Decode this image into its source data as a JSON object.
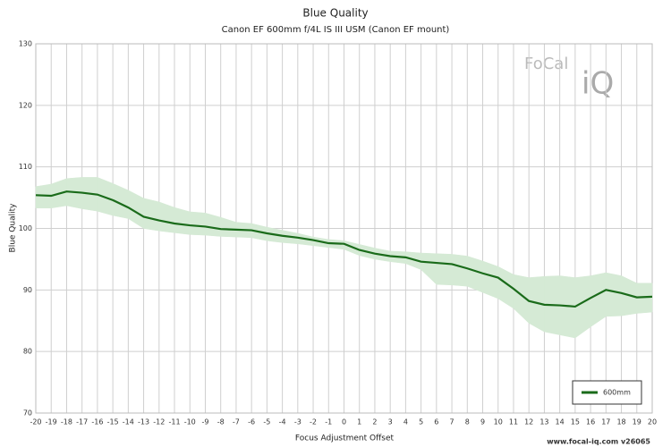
{
  "chart_data": {
    "type": "line",
    "title": "Blue Quality",
    "subtitle": "Canon EF 600mm f/4L IS III USM (Canon EF mount)",
    "x_label": "Focus Adjustment Offset",
    "y_label": "Blue Quality",
    "logo": [
      "FoCal",
      "iQ"
    ],
    "watermark": "www.focal-iq.com  v26065",
    "x": [
      -20,
      -19,
      -18,
      -17,
      -16,
      -15,
      -14,
      -13,
      -12,
      -11,
      -10,
      -9,
      -8,
      -7,
      -6,
      -5,
      -4,
      -3,
      -2,
      -1,
      0,
      1,
      2,
      3,
      4,
      5,
      6,
      7,
      8,
      9,
      10,
      11,
      12,
      13,
      14,
      15,
      16,
      17,
      18,
      19,
      20
    ],
    "xlim": [
      -20,
      20
    ],
    "xticks": [
      -20,
      -19,
      -18,
      -17,
      -16,
      -15,
      -14,
      -13,
      -12,
      -11,
      -10,
      -9,
      -8,
      -7,
      -6,
      -5,
      -4,
      -3,
      -2,
      -1,
      0,
      1,
      2,
      3,
      4,
      5,
      6,
      7,
      8,
      9,
      10,
      11,
      12,
      13,
      14,
      15,
      16,
      17,
      18,
      19,
      20
    ],
    "ylim": [
      70,
      130
    ],
    "yticks": [
      70,
      80,
      90,
      100,
      110,
      120,
      130
    ],
    "grid": true,
    "legend": "lower-right",
    "series": [
      {
        "name": "600mm",
        "color": "#1a6b1a",
        "band_color": "#d5ead5",
        "values": [
          105.4,
          105.3,
          106.0,
          105.8,
          105.5,
          104.6,
          103.4,
          101.9,
          101.3,
          100.8,
          100.5,
          100.3,
          99.9,
          99.8,
          99.7,
          99.2,
          98.8,
          98.5,
          98.1,
          97.6,
          97.5,
          96.5,
          95.9,
          95.5,
          95.3,
          94.6,
          94.4,
          94.2,
          93.5,
          92.7,
          92.0,
          90.2,
          88.2,
          87.6,
          87.5,
          87.3,
          88.7,
          90.0,
          89.5,
          88.8,
          88.9
        ],
        "band_upper": [
          106.8,
          107.2,
          108.1,
          108.3,
          108.3,
          107.3,
          106.2,
          104.9,
          104.3,
          103.4,
          102.7,
          102.5,
          101.8,
          101.0,
          100.8,
          100.2,
          99.7,
          99.2,
          98.6,
          98.2,
          98.0,
          97.4,
          96.8,
          96.3,
          96.2,
          96.0,
          95.9,
          95.8,
          95.5,
          94.7,
          93.8,
          92.5,
          92.0,
          92.2,
          92.3,
          92.0,
          92.3,
          92.8,
          92.3,
          91.1,
          91.1
        ],
        "band_lower": [
          103.3,
          103.3,
          103.7,
          103.2,
          102.8,
          102.1,
          101.6,
          100.0,
          99.6,
          99.3,
          99.0,
          98.9,
          98.7,
          98.6,
          98.5,
          98.0,
          97.7,
          97.5,
          97.2,
          96.9,
          96.6,
          95.6,
          95.0,
          94.6,
          94.3,
          93.3,
          90.9,
          90.8,
          90.6,
          89.6,
          88.6,
          87.0,
          84.6,
          83.2,
          82.7,
          82.2,
          84.0,
          85.7,
          85.8,
          86.2,
          86.4
        ]
      }
    ]
  }
}
